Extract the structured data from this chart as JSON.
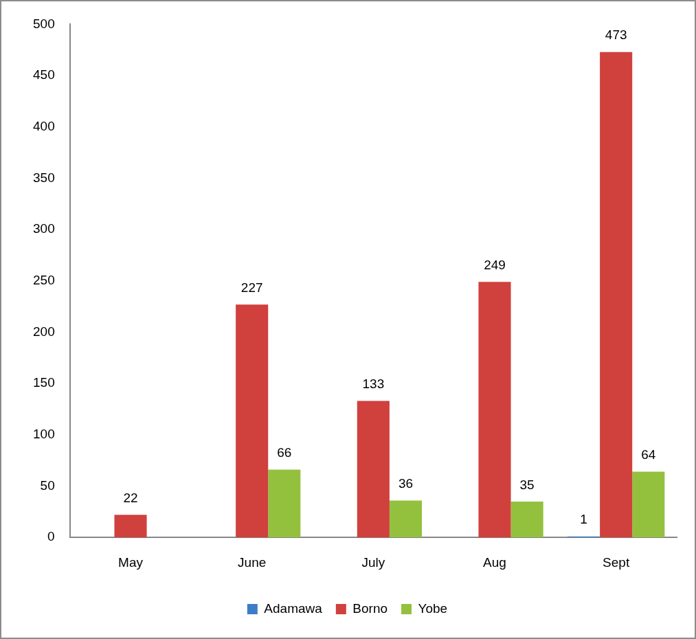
{
  "chart_data": {
    "type": "bar",
    "categories": [
      "May",
      "June",
      "July",
      "Aug",
      "Sept"
    ],
    "series": [
      {
        "name": "Adamawa",
        "color": "#3d7cc9",
        "values": [
          null,
          null,
          null,
          null,
          1
        ]
      },
      {
        "name": "Borno",
        "color": "#d0403d",
        "values": [
          22,
          227,
          133,
          249,
          473
        ]
      },
      {
        "name": "Yobe",
        "color": "#93c13e",
        "values": [
          null,
          66,
          36,
          35,
          64
        ]
      }
    ],
    "ylim": [
      0,
      500
    ],
    "yticks": [
      0,
      50,
      100,
      150,
      200,
      250,
      300,
      350,
      400,
      450,
      500
    ],
    "grid": false,
    "data_labels": true,
    "legend": "bottom"
  }
}
